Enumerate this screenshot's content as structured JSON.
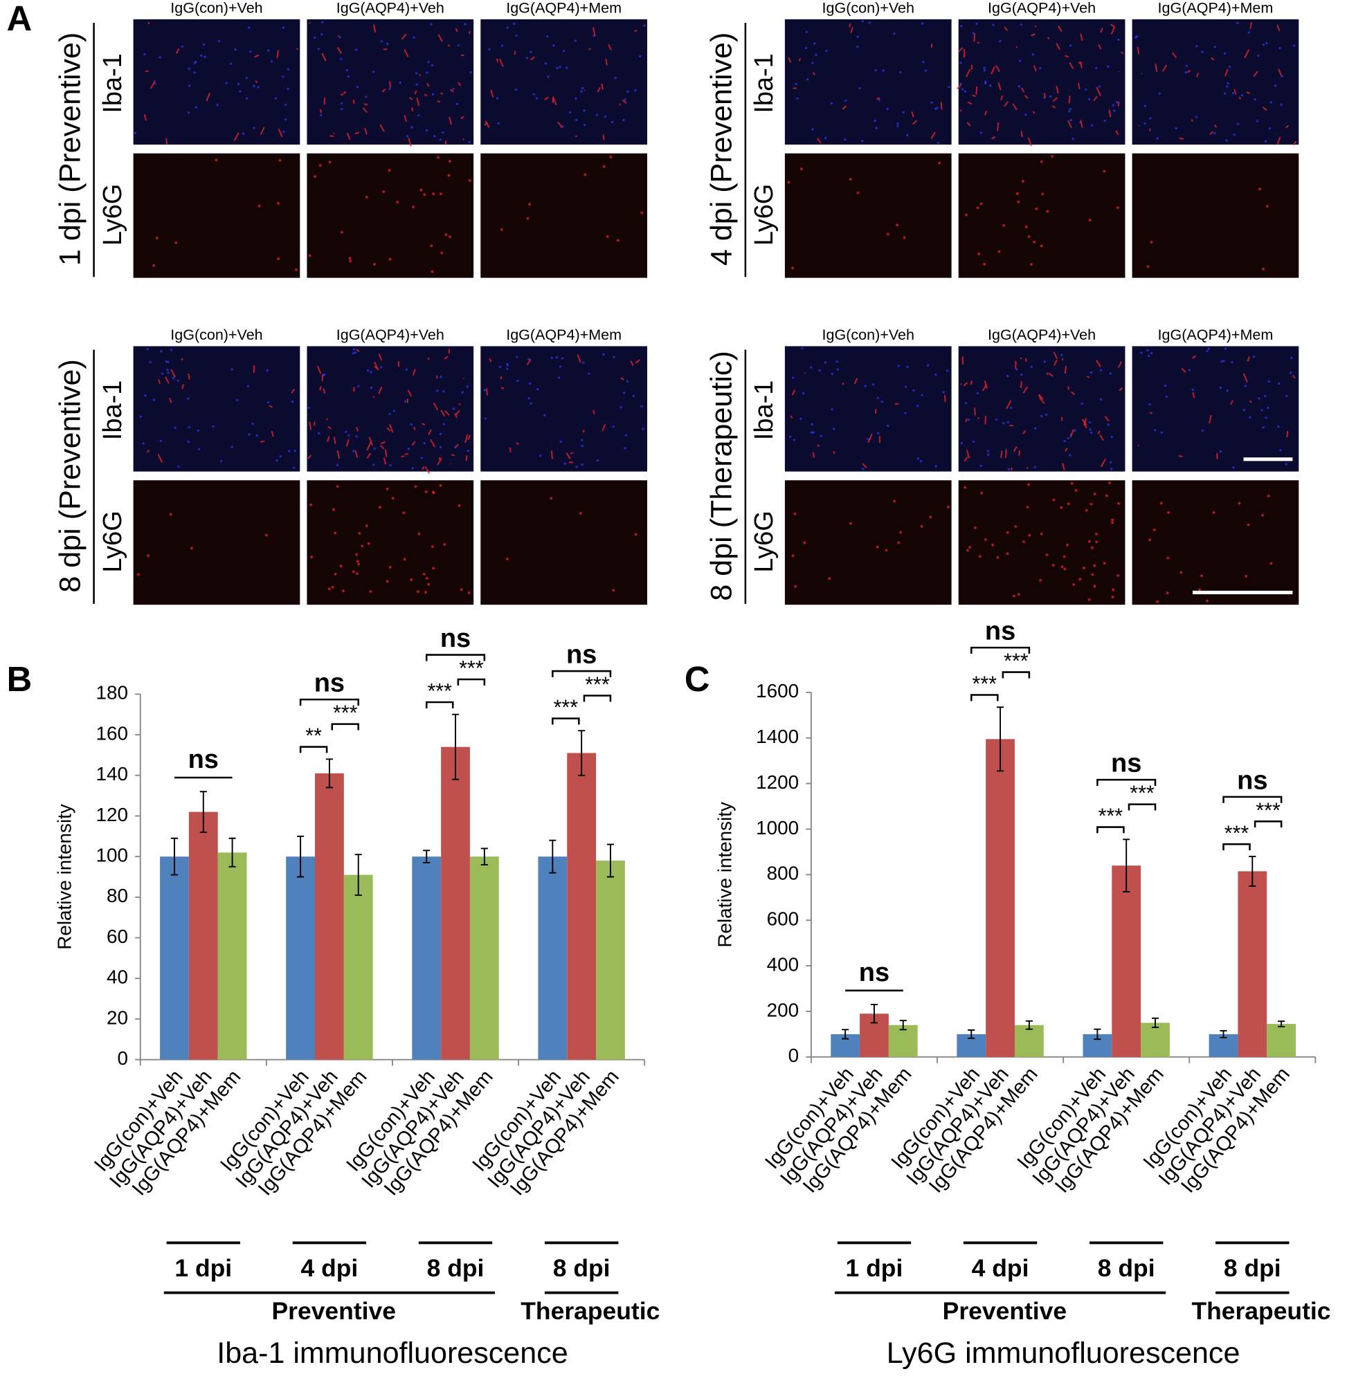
{
  "panel_a": {
    "label": "A",
    "subpanels": [
      {
        "title": "1 dpi (Preventive)",
        "columns": [
          "IgG(con)+Veh",
          "IgG(AQP4)+Veh",
          "IgG(AQP4)+Mem"
        ],
        "rows": [
          "Iba-1",
          "Ly6G"
        ]
      },
      {
        "title": "4 dpi (Preventive)",
        "columns": [
          "IgG(con)+Veh",
          "IgG(AQP4)+Veh",
          "IgG(AQP4)+Mem"
        ],
        "rows": [
          "Iba-1",
          "Ly6G"
        ]
      },
      {
        "title": "8 dpi (Preventive)",
        "columns": [
          "IgG(con)+Veh",
          "IgG(AQP4)+Veh",
          "IgG(AQP4)+Mem"
        ],
        "rows": [
          "Iba-1",
          "Ly6G"
        ]
      },
      {
        "title": "8 dpi (Therapeutic)",
        "columns": [
          "IgG(con)+Veh",
          "IgG(AQP4)+Veh",
          "IgG(AQP4)+Mem"
        ],
        "rows": [
          "Iba-1",
          "Ly6G"
        ]
      }
    ]
  },
  "chart_data": [
    {
      "type": "bar",
      "panel_label": "B",
      "y_label": "Relative intensity",
      "caption": "Iba-1 immunofluorescence",
      "categories": [
        "1 dpi",
        "4 dpi",
        "8 dpi",
        "8 dpi"
      ],
      "regimens": [
        "Preventive",
        "Therapeutic"
      ],
      "ylim": [
        0,
        180
      ],
      "yticks": [
        0,
        20,
        40,
        60,
        80,
        100,
        120,
        140,
        160,
        180
      ],
      "series": [
        {
          "name": "IgG(con)+Veh",
          "color": "#4f81bd",
          "values": [
            100,
            100,
            100,
            100
          ],
          "errors": [
            9,
            10,
            3,
            8
          ]
        },
        {
          "name": "IgG(AQP4)+Veh",
          "color": "#c0504d",
          "values": [
            122,
            141,
            154,
            151
          ],
          "errors": [
            10,
            7,
            16,
            11
          ]
        },
        {
          "name": "IgG(AQP4)+Mem",
          "color": "#9bbb59",
          "values": [
            102,
            91,
            100,
            98
          ],
          "errors": [
            7,
            10,
            4,
            8
          ]
        }
      ],
      "significance": [
        {
          "all": "ns"
        },
        {
          "all": "ns",
          "left": "**",
          "right": "***"
        },
        {
          "all": "ns",
          "left": "***",
          "right": "***"
        },
        {
          "all": "ns",
          "left": "***",
          "right": "***"
        }
      ]
    },
    {
      "type": "bar",
      "panel_label": "C",
      "y_label": "Relative intensity",
      "caption": "Ly6G immunofluorescence",
      "categories": [
        "1 dpi",
        "4 dpi",
        "8 dpi",
        "8 dpi"
      ],
      "regimens": [
        "Preventive",
        "Therapeutic"
      ],
      "ylim": [
        0,
        1600
      ],
      "yticks": [
        0,
        200,
        400,
        600,
        800,
        1000,
        1200,
        1400,
        1600
      ],
      "series": [
        {
          "name": "IgG(con)+Veh",
          "color": "#4f81bd",
          "values": [
            100,
            100,
            100,
            100
          ],
          "errors": [
            20,
            18,
            22,
            15
          ]
        },
        {
          "name": "IgG(AQP4)+Veh",
          "color": "#c0504d",
          "values": [
            190,
            1395,
            840,
            815
          ],
          "errors": [
            40,
            140,
            115,
            65
          ]
        },
        {
          "name": "IgG(AQP4)+Mem",
          "color": "#9bbb59",
          "values": [
            140,
            140,
            150,
            145
          ],
          "errors": [
            20,
            18,
            20,
            12
          ]
        }
      ],
      "significance": [
        {
          "all": "ns"
        },
        {
          "all": "ns",
          "left": "***",
          "right": "***"
        },
        {
          "all": "ns",
          "left": "***",
          "right": "***"
        },
        {
          "all": "ns",
          "left": "***",
          "right": "***"
        }
      ]
    }
  ]
}
